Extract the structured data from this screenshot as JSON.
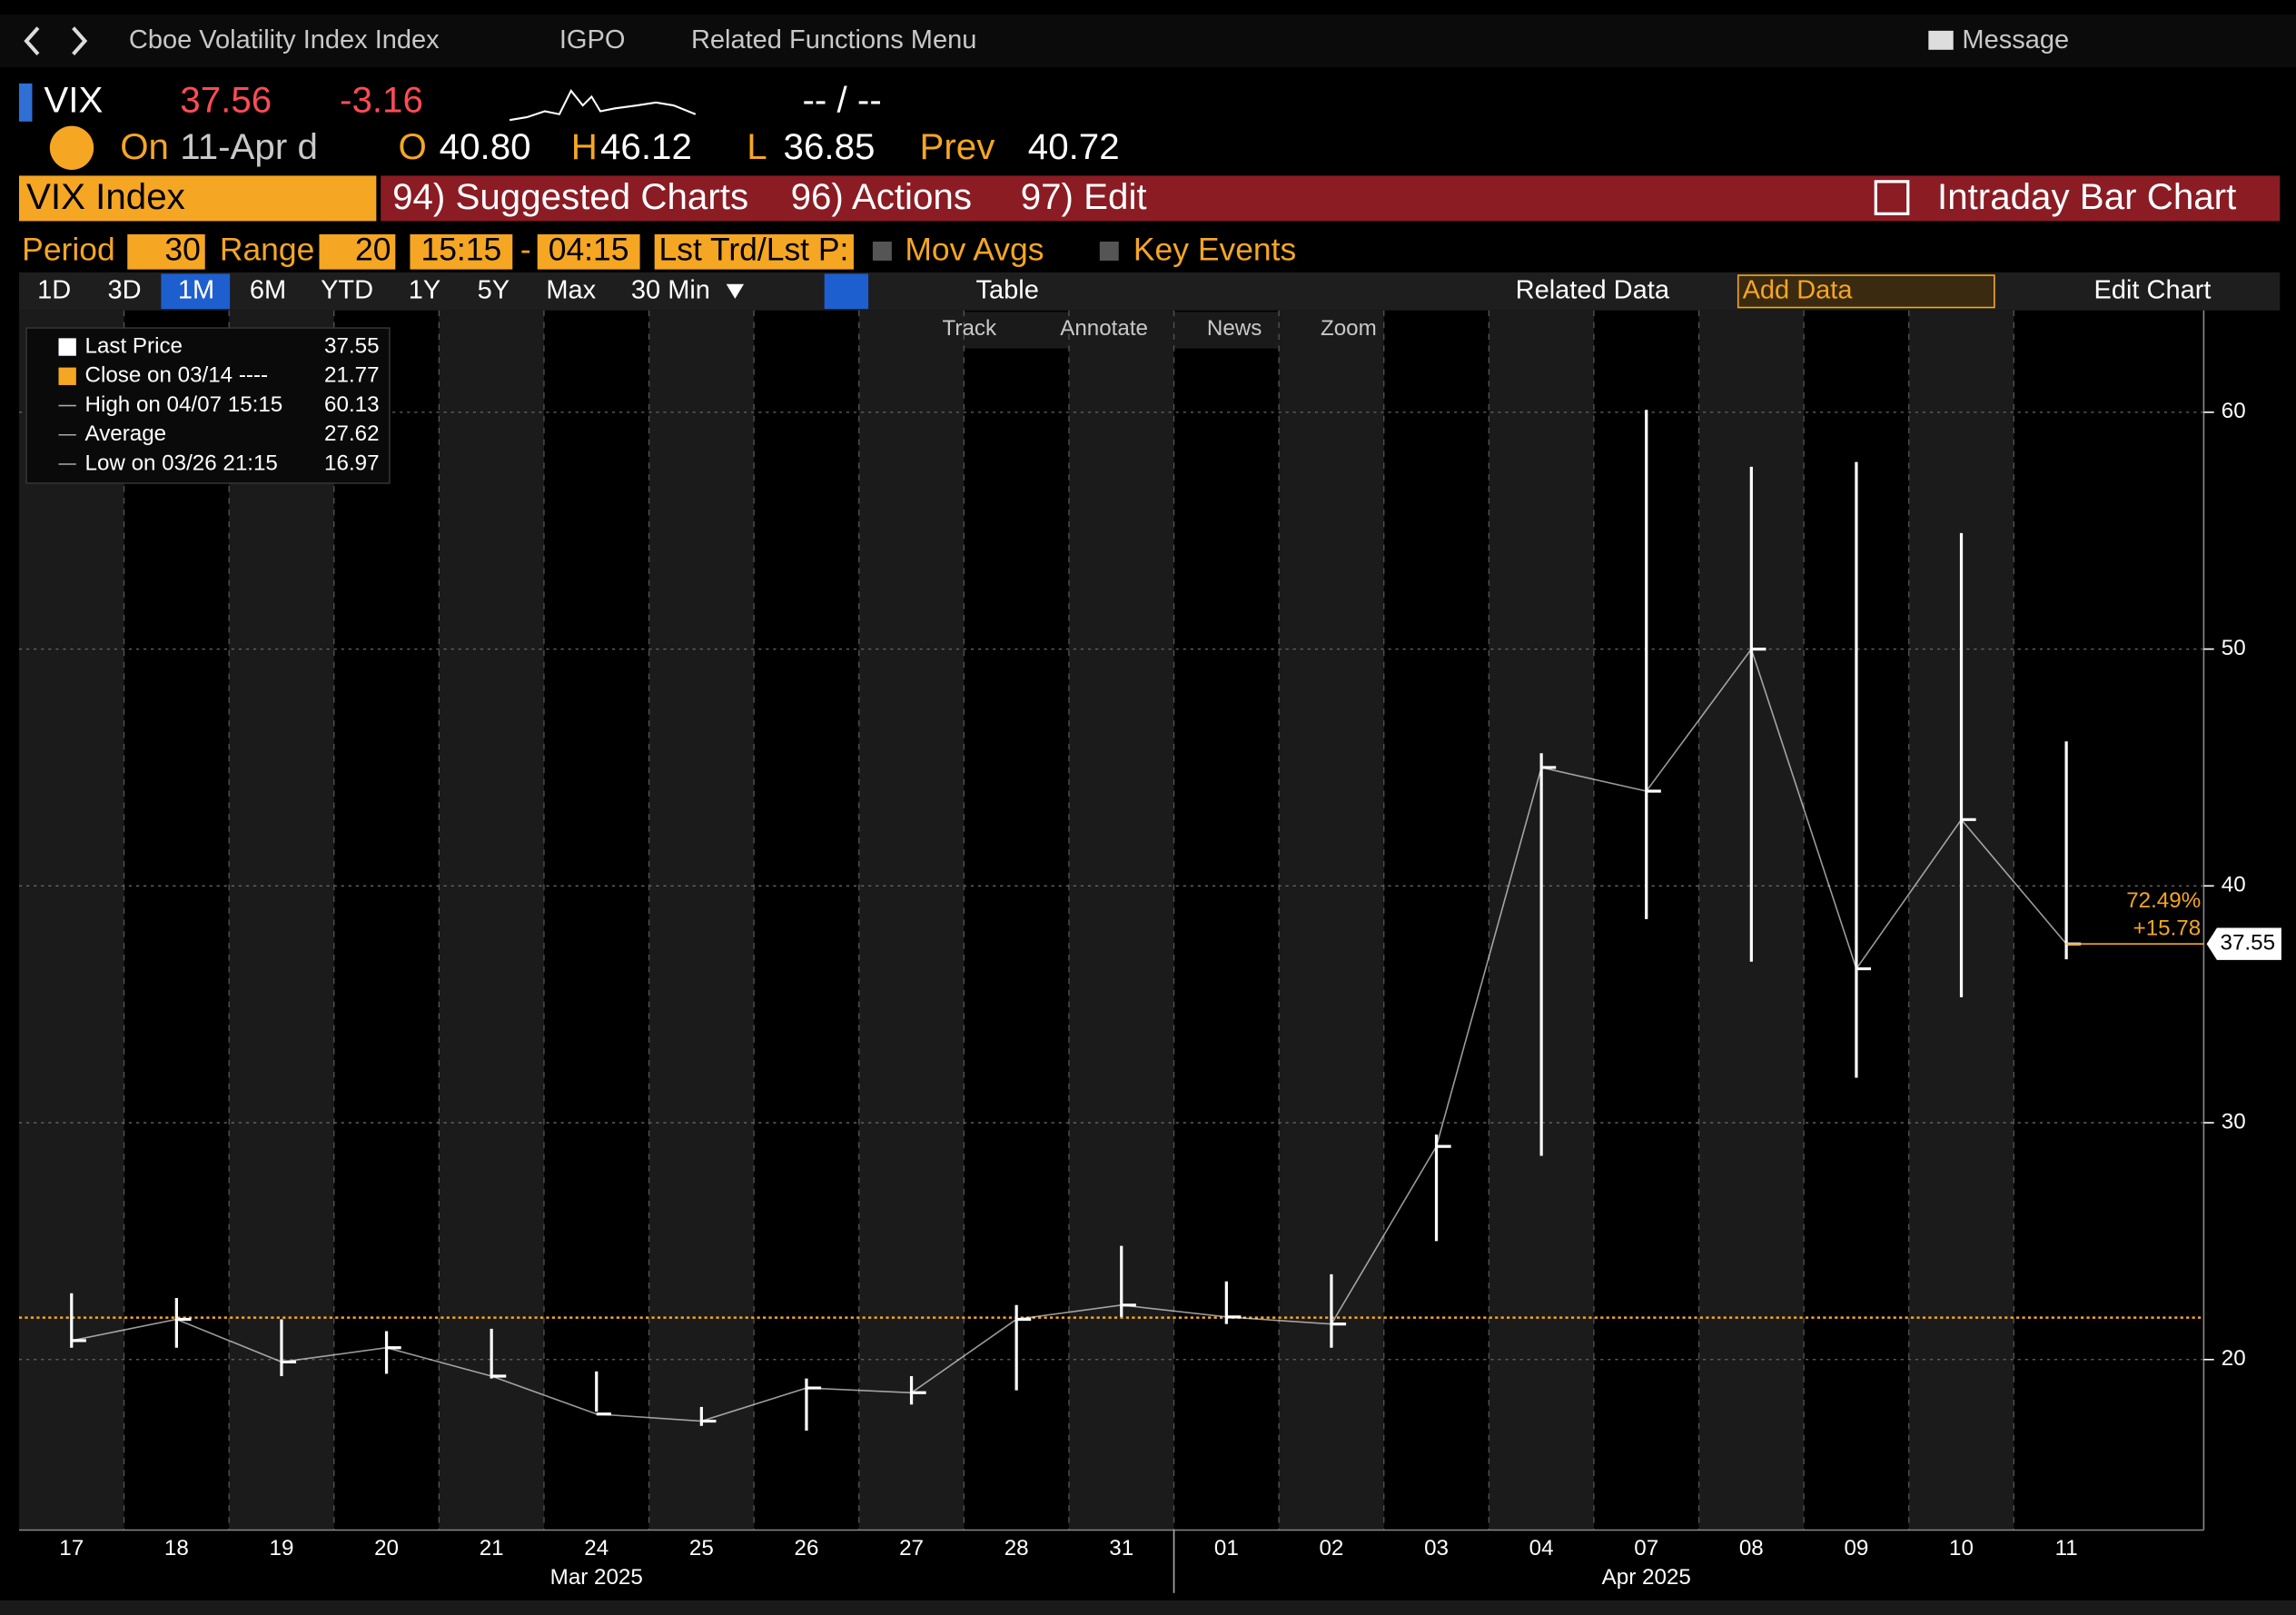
{
  "nav": {
    "security": "Cboe Volatility Index Index",
    "source": "IGPO",
    "menu": "Related Functions Menu",
    "message": "Message"
  },
  "quote": {
    "ticker": "VIX",
    "last": "37.56",
    "change": "-3.16",
    "bid_ask": "-- / --",
    "on_label": "On",
    "date": "11-Apr d",
    "open_label": "O",
    "open": "40.80",
    "high_label": "H",
    "high": "46.12",
    "low_label": "L",
    "low": "36.85",
    "prev_label": "Prev",
    "prev": "40.72"
  },
  "tabs": {
    "security": "VIX Index",
    "suggested": "94) Suggested Charts",
    "actions": "96) Actions",
    "edit": "97) Edit",
    "chart_type": "Intraday Bar Chart"
  },
  "settings": {
    "period_label": "Period",
    "period": "30",
    "range_label": "Range",
    "range": "20",
    "start": "15:15",
    "dash": "-",
    "end": "04:15",
    "price": "Lst Trd/Lst P:",
    "mov_avgs": "Mov Avgs",
    "key_events": "Key Events"
  },
  "ranges": [
    "1D",
    "3D",
    "1M",
    "6M",
    "YTD",
    "1Y",
    "5Y",
    "Max",
    "30 Min"
  ],
  "toolbar": {
    "table": "Table",
    "related_data": "Related Data",
    "add_data": "Add Data",
    "edit_chart": "Edit Chart"
  },
  "tools": [
    "Track",
    "Annotate",
    "News",
    "Zoom"
  ],
  "chart_data": {
    "type": "hlc",
    "color": "#ffffff",
    "categories": [
      "17",
      "18",
      "19",
      "20",
      "21",
      "24",
      "25",
      "26",
      "27",
      "28",
      "31",
      "01",
      "02",
      "03",
      "04",
      "07",
      "08",
      "09",
      "10",
      "11"
    ],
    "months": [
      "Mar 2025",
      "Apr 2025"
    ],
    "high": [
      22.8,
      22.6,
      21.7,
      21.2,
      21.3,
      19.5,
      18.0,
      19.2,
      19.3,
      22.3,
      24.8,
      23.3,
      23.6,
      29.5,
      45.6,
      60.1,
      57.7,
      57.9,
      54.9,
      46.1
    ],
    "low": [
      20.5,
      20.5,
      19.3,
      19.4,
      19.2,
      17.8,
      17.2,
      17.0,
      18.1,
      18.7,
      21.8,
      21.5,
      20.5,
      25.0,
      28.6,
      38.6,
      36.8,
      31.9,
      35.3,
      36.9
    ],
    "values": [
      20.8,
      21.7,
      19.9,
      20.5,
      19.3,
      17.7,
      17.4,
      18.8,
      18.6,
      21.7,
      22.3,
      21.8,
      21.5,
      29.0,
      45.0,
      44.0,
      50.0,
      36.5,
      42.8,
      37.55
    ],
    "ylim": [
      12.8,
      64.3
    ],
    "yticks": [
      20,
      30,
      40,
      50,
      60
    ],
    "grid": true,
    "legend": [
      {
        "label": "Last Price",
        "value": 37.55
      },
      {
        "label": "Close on 03/14 ----",
        "value": 21.77
      },
      {
        "label": "High on 04/07 15:15",
        "value": 60.13
      },
      {
        "label": "Average",
        "value": 27.62
      },
      {
        "label": "Low on 03/26 21:15",
        "value": 16.97
      }
    ],
    "annotations": [
      "72.49%",
      "+15.78"
    ]
  }
}
